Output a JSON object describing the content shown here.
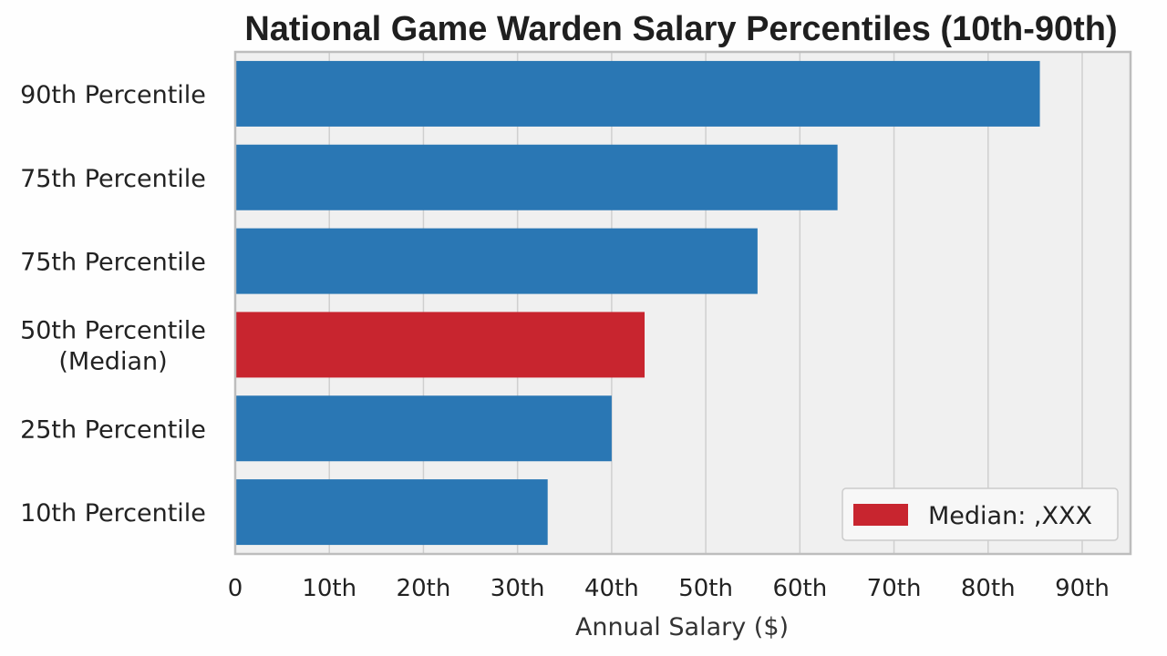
{
  "chart_data": {
    "type": "bar",
    "orientation": "horizontal",
    "title": "National Game Warden Salary Percentiles (10th-90th)",
    "xlabel": "Annual Salary ($)",
    "ylabel": "",
    "xlim": [
      0,
      90
    ],
    "x_ticks": [
      "0",
      "10th",
      "20th",
      "30th",
      "40th",
      "50th",
      "60th",
      "70th",
      "80th",
      "90th"
    ],
    "categories": [
      [
        "90th Percentile"
      ],
      [
        "75th Percentile"
      ],
      [
        "75th Percentile"
      ],
      [
        "50th Percentile",
        "(Median)"
      ],
      [
        "25th Percentile"
      ],
      [
        "10th Percentile"
      ]
    ],
    "values": [
      85.5,
      64,
      55.5,
      43.5,
      40,
      33.2
    ],
    "highlight_index": 3,
    "colors": {
      "bar": "#2a77b4",
      "highlight": "#c8252f",
      "plot_background": "#f0f0f0",
      "grid": "#cfcfcf",
      "axis": "#bdbdbd"
    },
    "grid": true,
    "legend": {
      "position": "bottom-right",
      "label": "Median: ,XXX"
    }
  }
}
